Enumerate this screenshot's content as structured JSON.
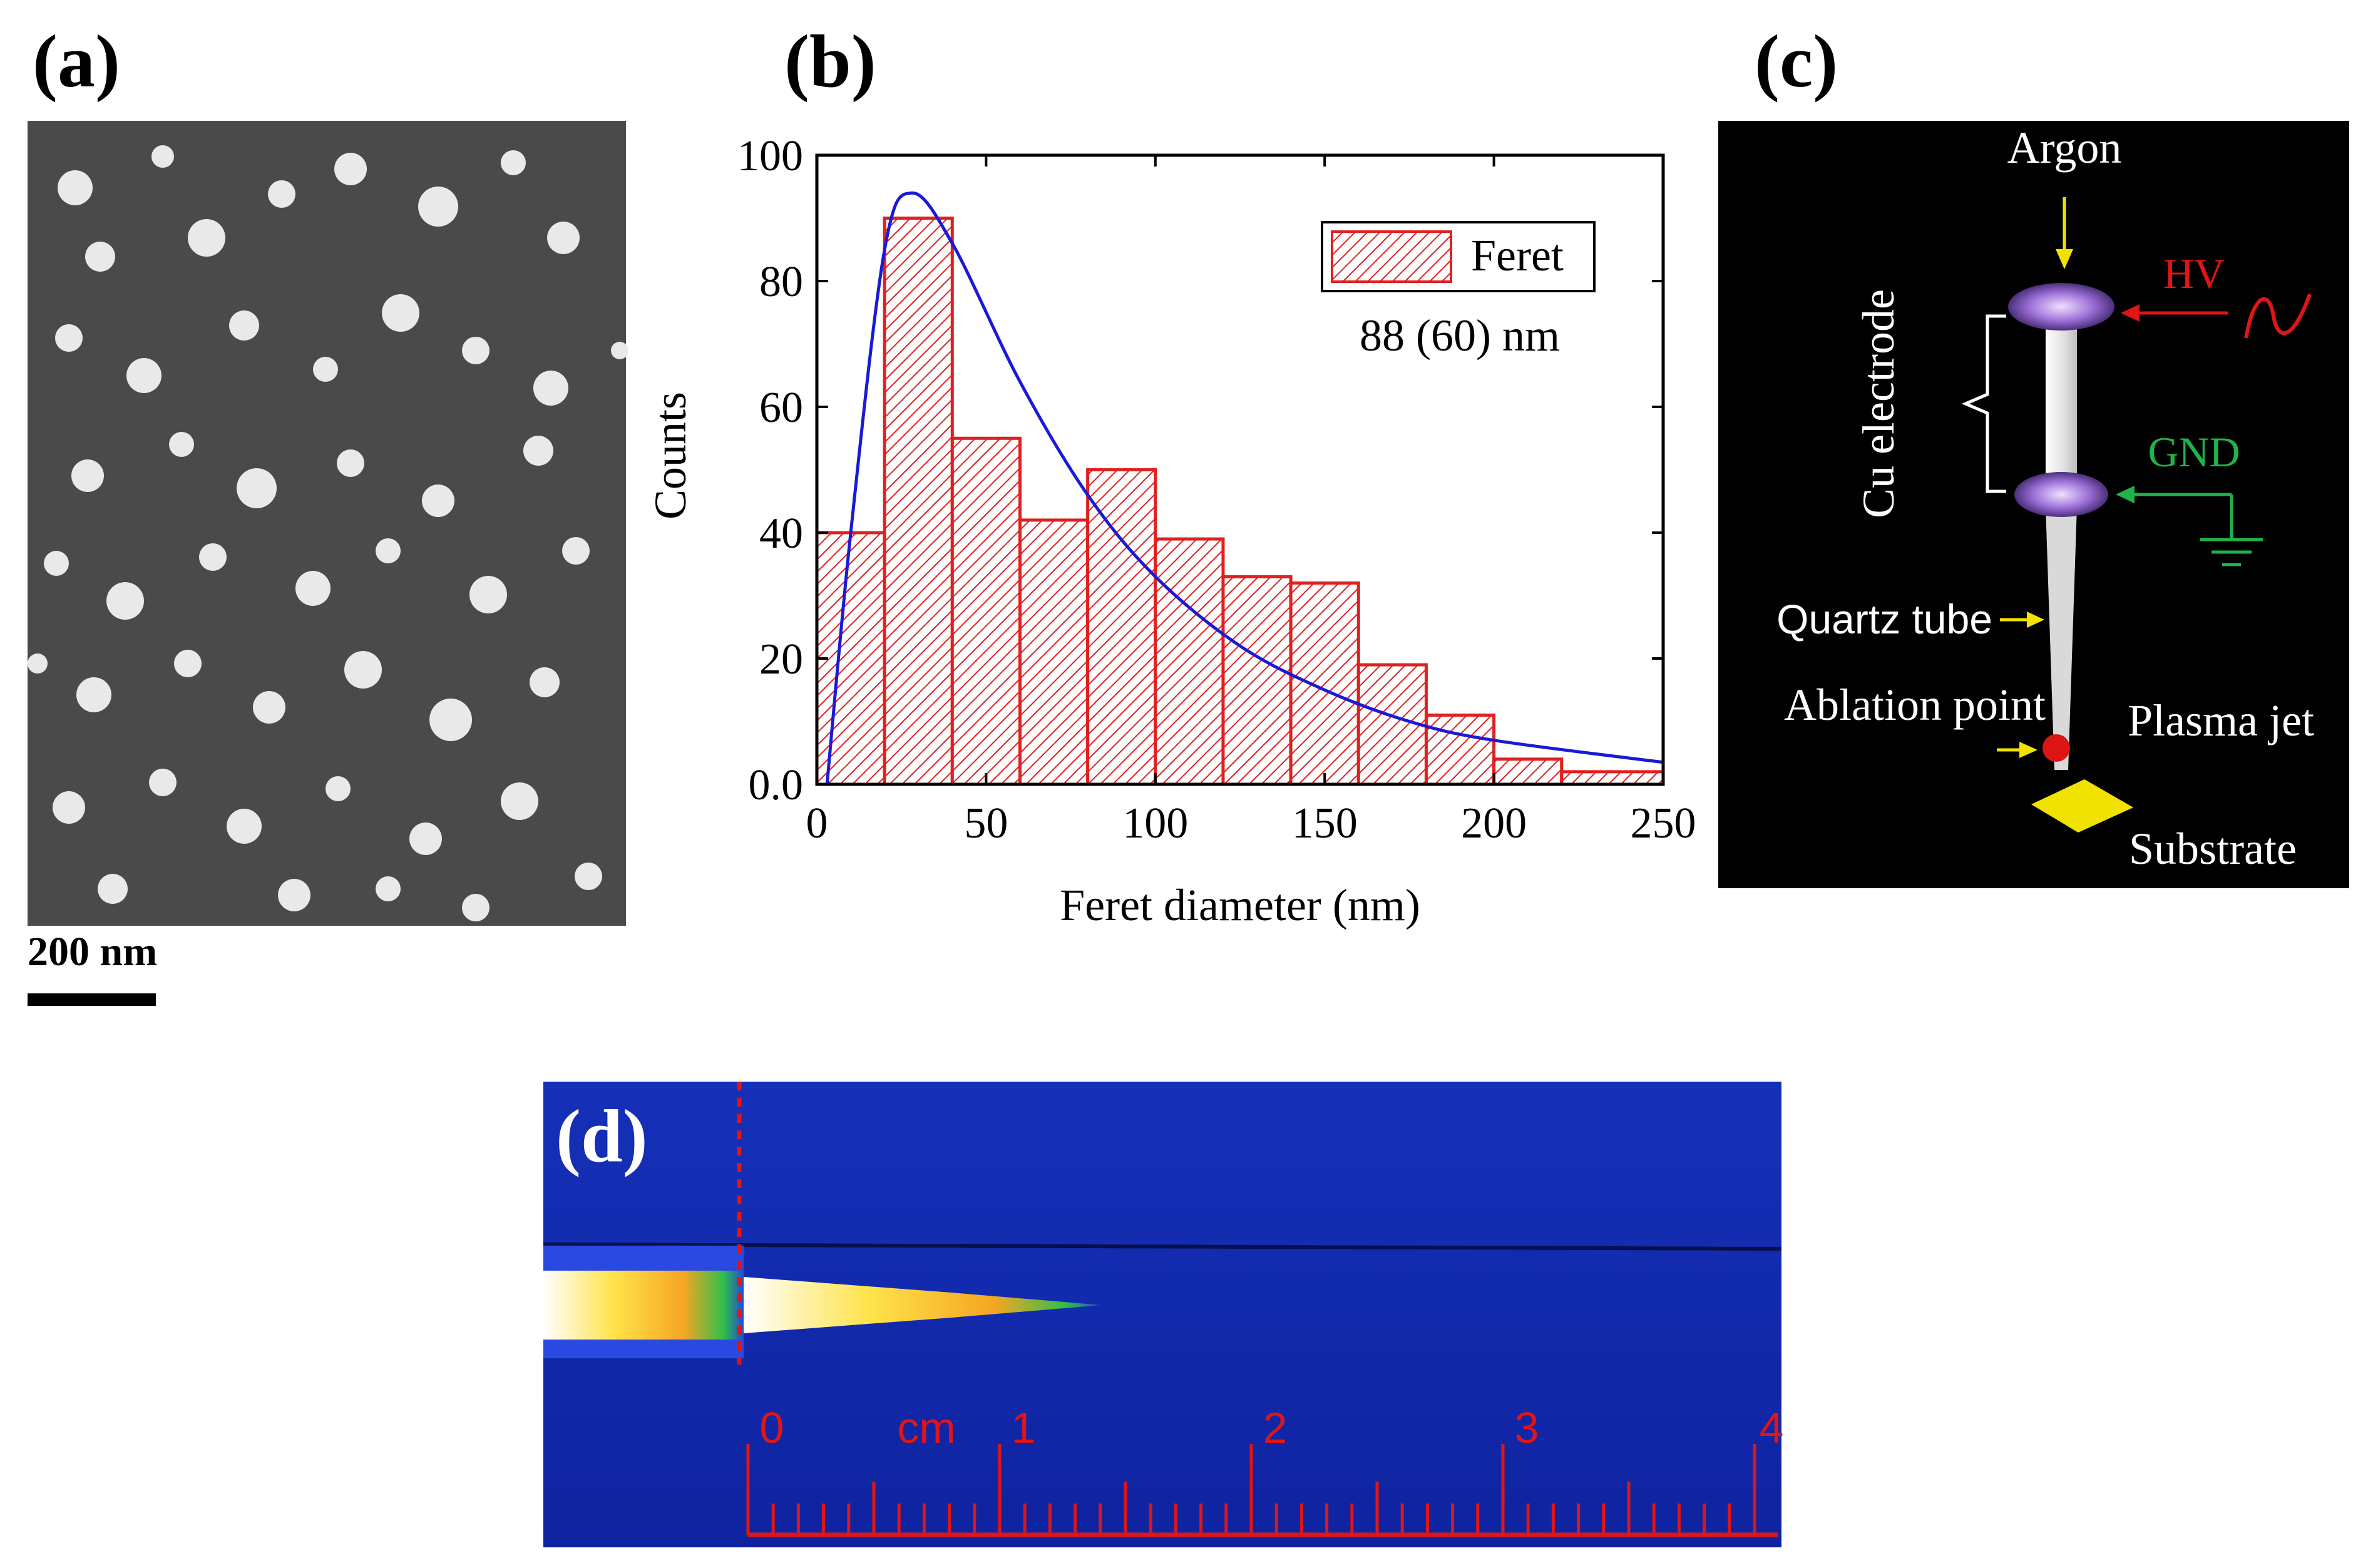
{
  "panels": {
    "a": {
      "label": "(a)",
      "scale_bar": "200 nm"
    },
    "b": {
      "label": "(b)"
    },
    "c": {
      "label": "(c)",
      "labels": {
        "argon": "Argon",
        "hv": "HV",
        "gnd": "GND",
        "cu_electrode": "Cu electrode",
        "quartz_tube": "Quartz tube",
        "ablation_point": "Ablation point",
        "plasma_jet": "Plasma jet",
        "substrate": "Substrate"
      }
    },
    "d": {
      "label": "(d)",
      "ruler_unit": "cm",
      "ruler_numbers": [
        "0",
        "1",
        "2",
        "3",
        "4"
      ]
    }
  },
  "chart_data": {
    "type": "bar",
    "title": "",
    "xlabel": "Feret diameter (nm)",
    "ylabel": "Counts",
    "xlim": [
      0,
      250
    ],
    "ylim": [
      0,
      100
    ],
    "x_ticks": [
      "0",
      "50",
      "100",
      "150",
      "200",
      "250"
    ],
    "y_ticks": [
      "0.0",
      "20",
      "40",
      "60",
      "80",
      "100"
    ],
    "bin_edges": [
      0,
      20,
      40,
      60,
      80,
      100,
      120,
      140,
      160,
      180,
      200,
      220,
      250
    ],
    "values": [
      40,
      90,
      55,
      42,
      50,
      39,
      33,
      32,
      19,
      11,
      4,
      2
    ],
    "series_name": "Feret",
    "annotation": "88 (60) nm",
    "legend_position": "top-right",
    "fit": {
      "type": "lognormal",
      "color": "#1a1ad6",
      "peak_x": 28,
      "peak_y": 94,
      "points": [
        [
          3,
          0
        ],
        [
          10,
          40
        ],
        [
          20,
          85
        ],
        [
          28,
          94
        ],
        [
          40,
          86
        ],
        [
          60,
          64
        ],
        [
          80,
          46
        ],
        [
          100,
          33
        ],
        [
          125,
          22
        ],
        [
          150,
          15
        ],
        [
          175,
          10
        ],
        [
          200,
          7
        ],
        [
          250,
          3.5
        ]
      ]
    },
    "bar_color": "#e02020"
  }
}
